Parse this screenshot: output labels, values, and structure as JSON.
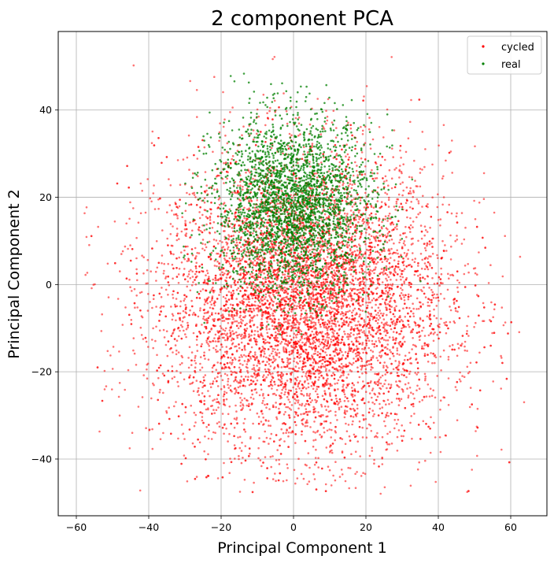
{
  "chart_data": {
    "type": "scatter",
    "title": "2 component PCA",
    "xlabel": "Principal Component 1",
    "ylabel": "Principal Component 2",
    "xlim": [
      -65,
      70
    ],
    "ylim": [
      -53,
      58
    ],
    "xticks": [
      -60,
      -40,
      -20,
      0,
      20,
      40,
      60
    ],
    "yticks": [
      -40,
      -20,
      0,
      20,
      40
    ],
    "grid": true,
    "legend_position": "top-right",
    "series": [
      {
        "name": "cycled",
        "color": "#ff0000",
        "opacity": 0.55,
        "point_count": 8000,
        "distribution": {
          "type": "gaussian",
          "mean": [
            3,
            -4
          ],
          "std": [
            20,
            17
          ],
          "x_range": [
            -58,
            64
          ],
          "y_range": [
            -48,
            54
          ]
        }
      },
      {
        "name": "real",
        "color": "#008000",
        "opacity": 0.75,
        "point_count": 2800,
        "distribution": {
          "type": "gaussian",
          "mean": [
            0,
            18
          ],
          "std": [
            11,
            10
          ],
          "x_range": [
            -32,
            36
          ],
          "y_range": [
            -12,
            50
          ]
        }
      }
    ]
  }
}
